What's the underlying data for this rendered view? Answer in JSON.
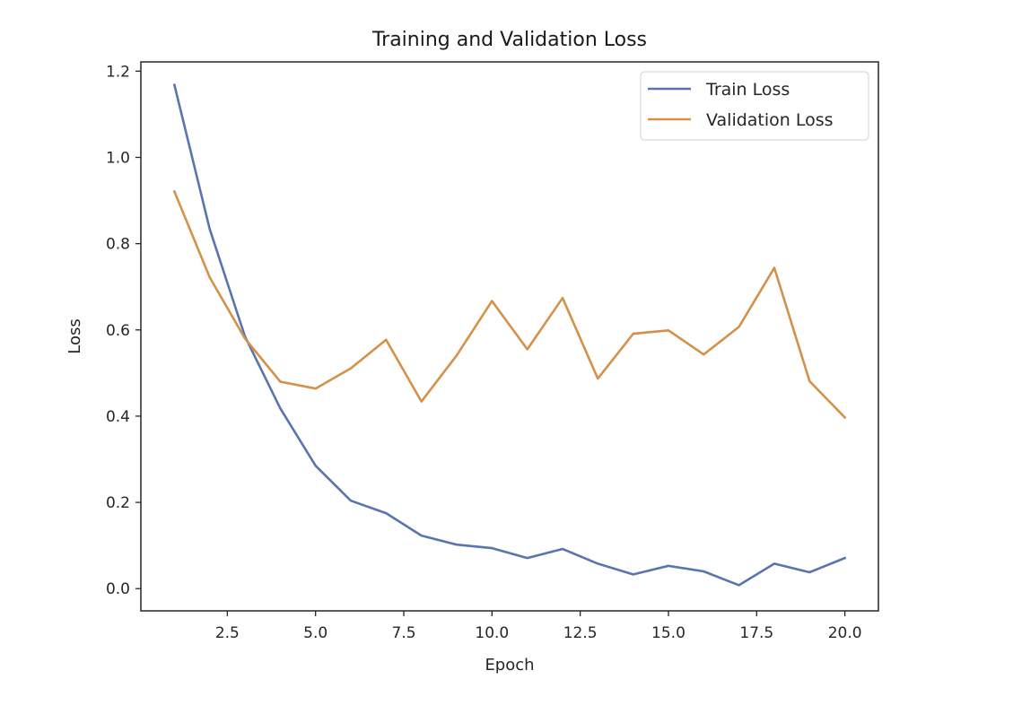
{
  "chart_data": {
    "type": "line",
    "title": "Training and Validation Loss",
    "xlabel": "Epoch",
    "ylabel": "Loss",
    "x": [
      1,
      2,
      3,
      4,
      5,
      6,
      7,
      8,
      9,
      10,
      11,
      12,
      13,
      14,
      15,
      16,
      17,
      18,
      19,
      20
    ],
    "series": [
      {
        "name": "Train Loss",
        "color": "#5875b0",
        "values": [
          1.168,
          0.834,
          0.585,
          0.418,
          0.285,
          0.204,
          0.175,
          0.123,
          0.102,
          0.094,
          0.071,
          0.092,
          0.058,
          0.033,
          0.053,
          0.04,
          0.008,
          0.058,
          0.038,
          0.071
        ]
      },
      {
        "name": "Validation Loss",
        "color": "#d3914a",
        "values": [
          0.921,
          0.722,
          0.58,
          0.48,
          0.464,
          0.511,
          0.577,
          0.434,
          0.541,
          0.667,
          0.555,
          0.674,
          0.487,
          0.591,
          0.599,
          0.543,
          0.607,
          0.744,
          0.481,
          0.397
        ]
      }
    ],
    "xlim": [
      0.05,
      20.95
    ],
    "ylim": [
      -0.0515,
      1.2215
    ],
    "xticks": [
      2.5,
      5.0,
      7.5,
      10.0,
      12.5,
      15.0,
      17.5,
      20.0
    ],
    "xtick_labels": [
      "2.5",
      "5.0",
      "7.5",
      "10.0",
      "12.5",
      "15.0",
      "17.5",
      "20.0"
    ],
    "yticks": [
      0.0,
      0.2,
      0.4,
      0.6,
      0.8,
      1.0,
      1.2
    ],
    "ytick_labels": [
      "0.0",
      "0.2",
      "0.4",
      "0.6",
      "0.8",
      "1.0",
      "1.2"
    ],
    "grid": false,
    "legend_position": "top-right"
  }
}
